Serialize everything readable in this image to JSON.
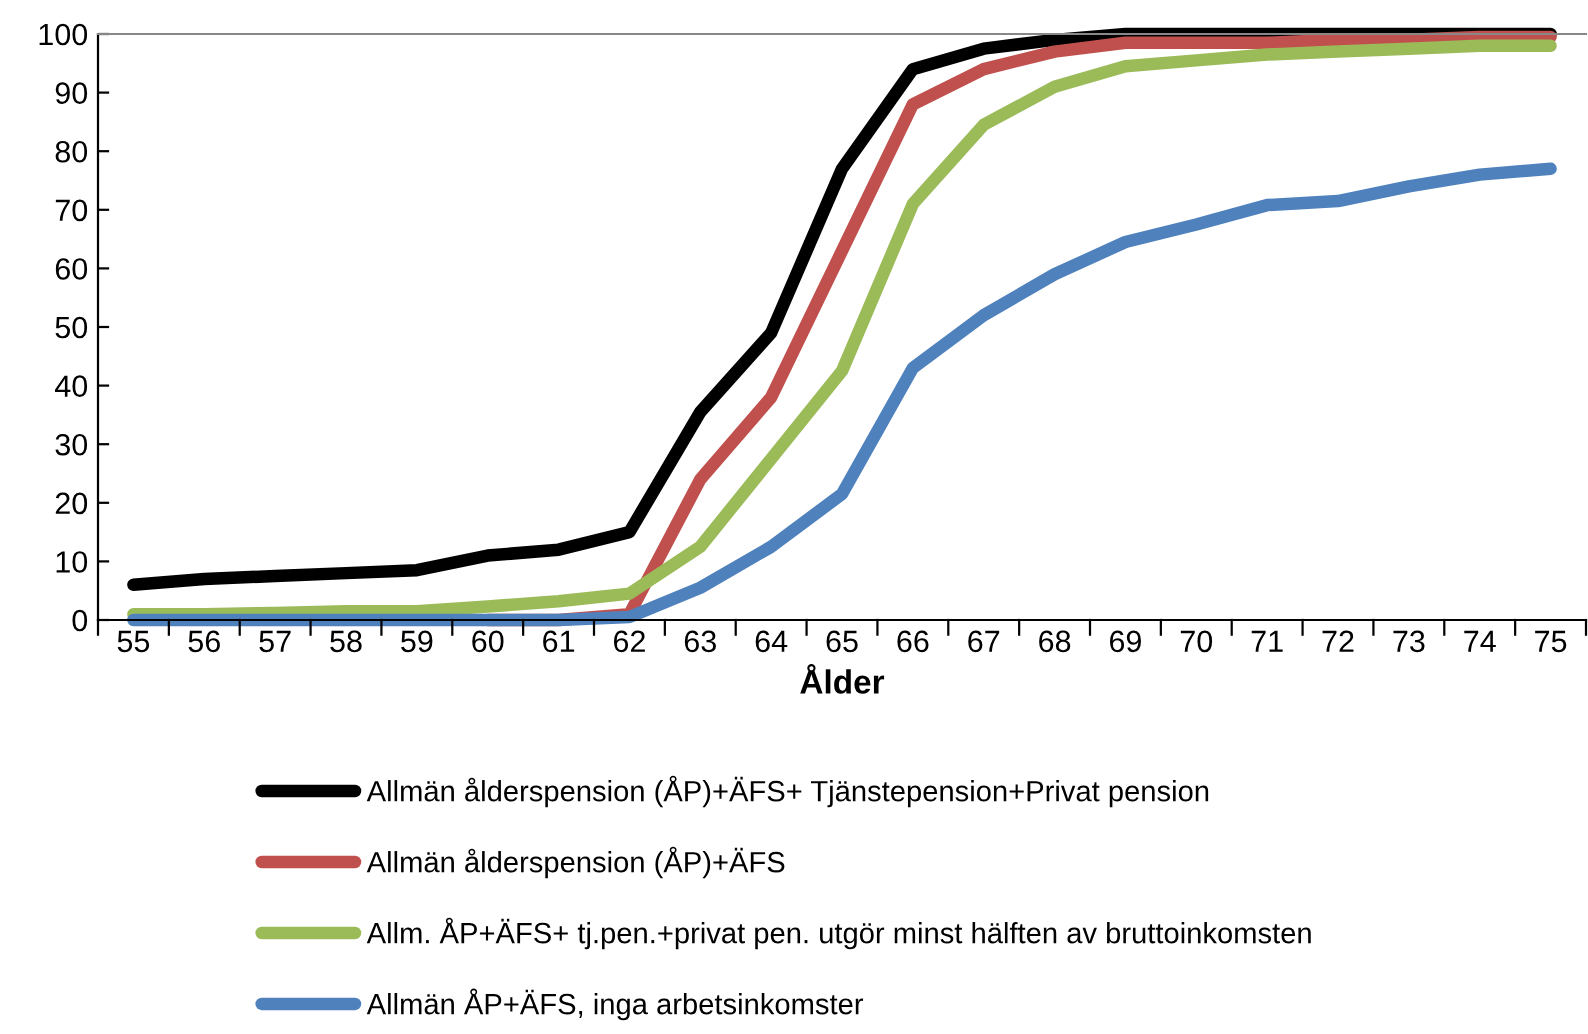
{
  "chart_data": {
    "type": "line",
    "xlabel": "Ålder",
    "categories": [
      "55",
      "56",
      "57",
      "58",
      "59",
      "60",
      "61",
      "62",
      "63",
      "64",
      "65",
      "66",
      "67",
      "68",
      "69",
      "70",
      "71",
      "72",
      "73",
      "74",
      "75"
    ],
    "series": [
      {
        "name": "Allmän ålderspension (ÅP)+ÄFS+ Tjänstepension+Privat pension",
        "color": "#000000",
        "values": [
          6,
          7,
          7.5,
          8,
          8.5,
          11,
          12,
          15,
          35.5,
          49,
          77,
          94,
          97.5,
          99,
          100,
          100,
          100,
          100,
          100,
          100,
          100
        ]
      },
      {
        "name": "Allmän ålderspension (ÅP)+ÄFS",
        "color": "#c0504d",
        "values": [
          null,
          null,
          null,
          null,
          null,
          0,
          0,
          1,
          24,
          38,
          63,
          88,
          94,
          97,
          98.5,
          98.5,
          98.5,
          99,
          99,
          99.5,
          99.5
        ]
      },
      {
        "name": "Allm. ÅP+ÄFS+ tj.pen.+privat pen. utgör minst hälften av bruttoinkomsten",
        "color": "#9bbb59",
        "values": [
          1,
          1,
          1.2,
          1.5,
          1.5,
          2.3,
          3.2,
          4.5,
          12.5,
          27.5,
          42.5,
          71,
          84.5,
          91,
          94.5,
          95.5,
          96.5,
          97,
          97.5,
          98,
          98
        ]
      },
      {
        "name": "Allmän ÅP+ÄFS, inga arbetsinkomster",
        "color": "#4f81bd",
        "values": [
          0,
          0,
          0,
          0,
          0,
          0,
          0,
          0.5,
          5.5,
          12.5,
          21.5,
          43,
          52,
          59,
          64.5,
          67.5,
          70.8,
          71.5,
          74,
          76,
          77
        ]
      }
    ],
    "ylim": [
      0,
      100
    ],
    "yticks": [
      0,
      10,
      20,
      30,
      40,
      50,
      60,
      70,
      80,
      90,
      100
    ],
    "grid": false,
    "legend": "bottom",
    "marker": "none",
    "line_style": "solid"
  }
}
